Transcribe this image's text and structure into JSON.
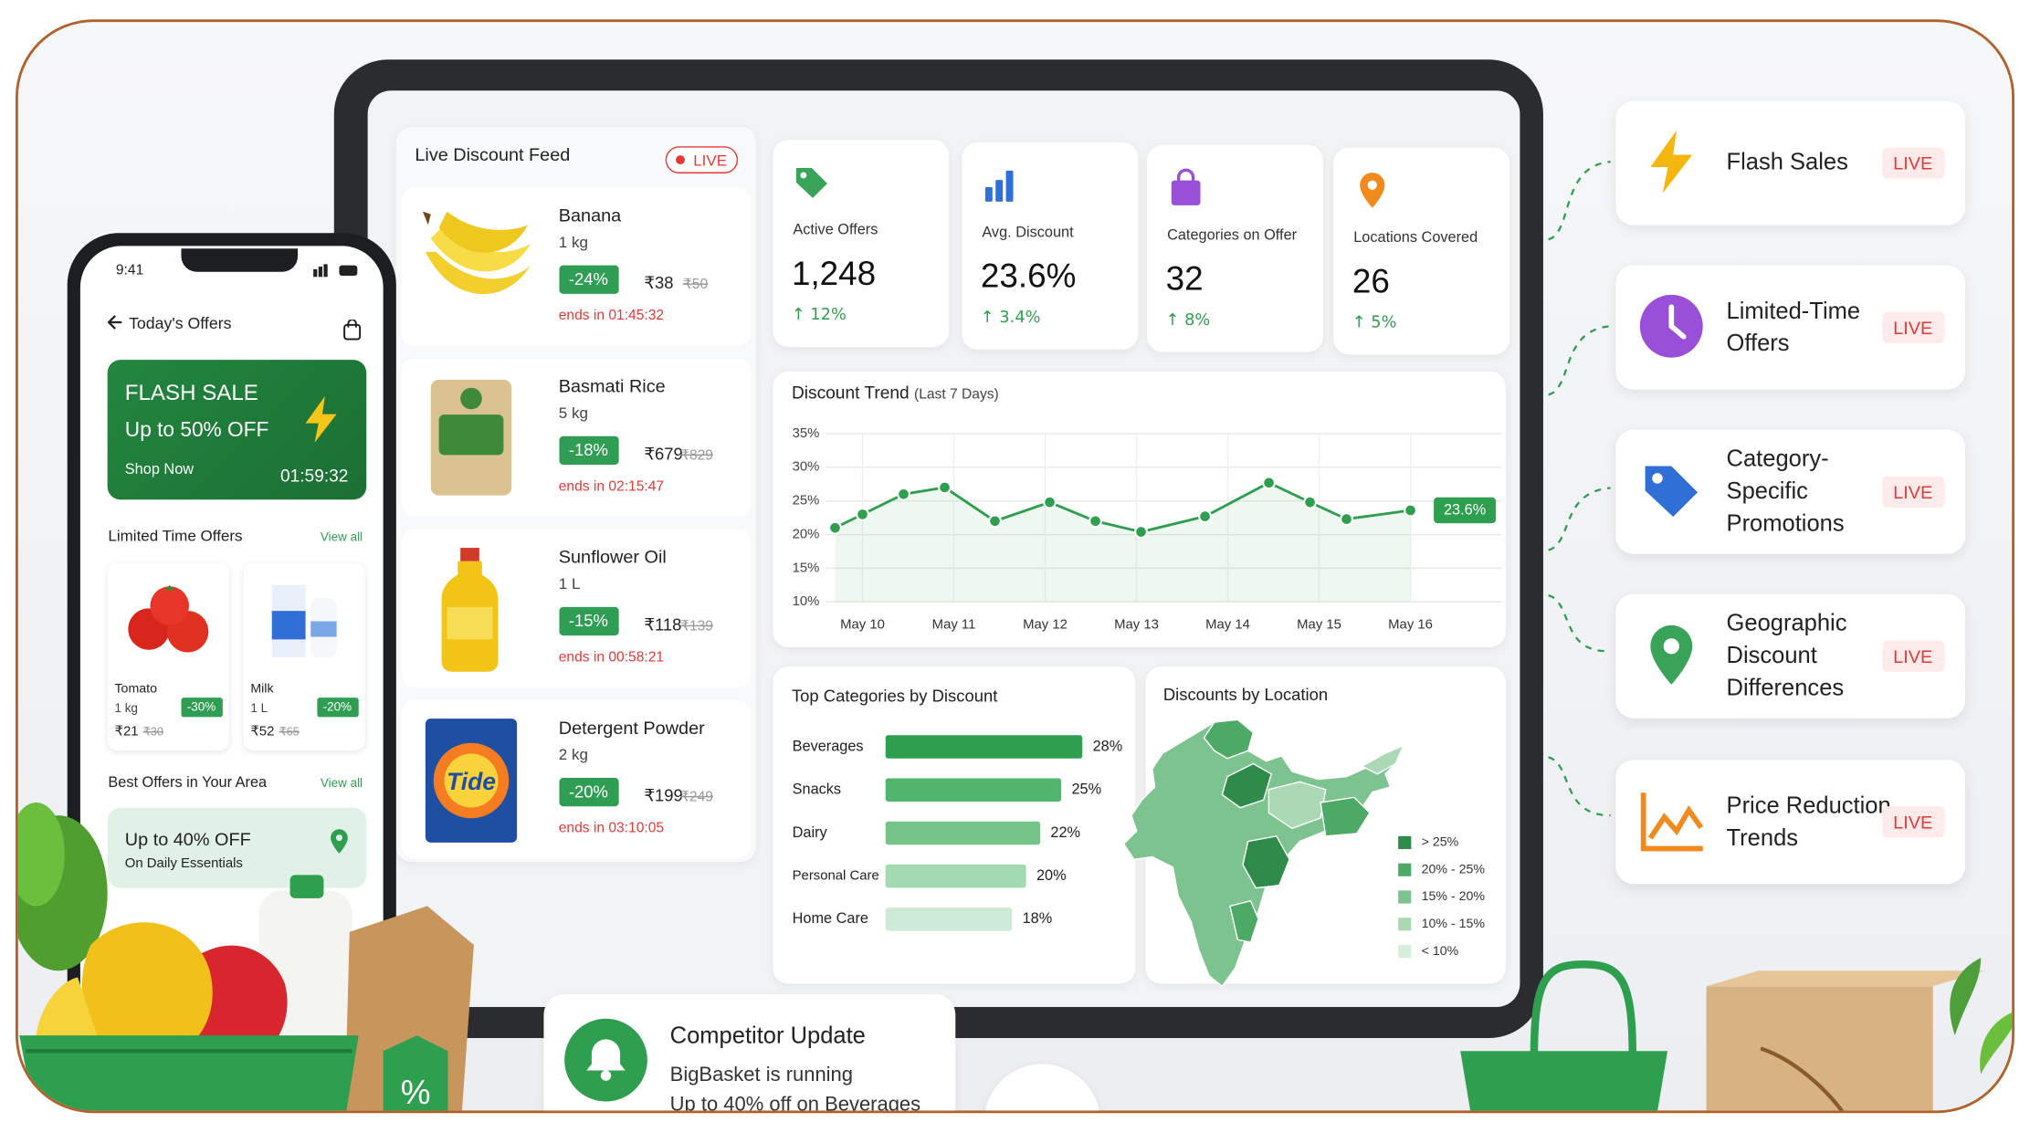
{
  "phone": {
    "time": "9:41",
    "title": "Today's Offers",
    "flash": {
      "title": "FLASH SALE",
      "subtitle": "Up to 50% OFF",
      "cta": "Shop Now",
      "timer": "01:59:32"
    },
    "limited": {
      "title": "Limited Time Offers",
      "link": "View all",
      "items": [
        {
          "name": "Tomato",
          "qty": "1 kg",
          "price": "₹21",
          "old": "₹30",
          "badge": "-30%"
        },
        {
          "name": "Milk",
          "qty": "1 L",
          "price": "₹52",
          "old": "₹65",
          "badge": "-20%"
        }
      ]
    },
    "area": {
      "title": "Best Offers in Your Area",
      "link": "View all",
      "offer": "Up to 40% OFF",
      "sub": "On Daily Essentials"
    }
  },
  "feed": {
    "title": "Live Discount Feed",
    "live": "LIVE",
    "items": [
      {
        "name": "Banana",
        "qty": "1 kg",
        "badge": "-24%",
        "price": "₹38",
        "old": "₹50",
        "ends": "ends in 01:45:32"
      },
      {
        "name": "Basmati Rice",
        "qty": "5 kg",
        "badge": "-18%",
        "price": "₹679",
        "old": "₹829",
        "ends": "ends in 02:15:47"
      },
      {
        "name": "Sunflower Oil",
        "qty": "1 L",
        "badge": "-15%",
        "price": "₹118",
        "old": "₹139",
        "ends": "ends in 00:58:21"
      },
      {
        "name": "Detergent Powder",
        "qty": "2 kg",
        "badge": "-20%",
        "price": "₹199",
        "old": "₹249",
        "ends": "ends in 03:10:05",
        "brand": "Tide"
      }
    ]
  },
  "kpis": [
    {
      "label": "Active Offers",
      "value": "1,248",
      "change": "↑ 12%"
    },
    {
      "label": "Avg. Discount",
      "value": "23.6%",
      "change": "↑ 3.4%"
    },
    {
      "label": "Categories on Offer",
      "value": "32",
      "change": "↑ 8%"
    },
    {
      "label": "Locations Covered",
      "value": "26",
      "change": "↑ 5%"
    }
  ],
  "chart_data": [
    {
      "type": "line",
      "title": "Discount Trend",
      "subtitle": "(Last 7 Days)",
      "x": [
        9.7,
        10,
        10.45,
        10.9,
        11.45,
        12.05,
        12.55,
        13.05,
        13.75,
        14.45,
        14.9,
        15.3,
        16
      ],
      "values": [
        21,
        23,
        26,
        27,
        22,
        24.8,
        22,
        20.4,
        22.7,
        27.7,
        24.8,
        22.3,
        23.6
      ],
      "value_labels": [
        null,
        null,
        null,
        null,
        null,
        null,
        null,
        null,
        null,
        null,
        null,
        null,
        "23.6%"
      ],
      "color": "#2e9e4f",
      "xlim": [
        9.6,
        17
      ],
      "xticks": [
        {
          "value": 10,
          "label": "May 10"
        },
        {
          "value": 11,
          "label": "May 11"
        },
        {
          "value": 12,
          "label": "May 12"
        },
        {
          "value": 13,
          "label": "May 13"
        },
        {
          "value": 14,
          "label": "May 14"
        },
        {
          "value": 15,
          "label": "May 15"
        },
        {
          "value": 16,
          "label": "May 16"
        }
      ],
      "ylim": [
        10,
        35
      ],
      "yticks": [
        {
          "value": 10,
          "label": "10%"
        },
        {
          "value": 15,
          "label": "15%"
        },
        {
          "value": 20,
          "label": "20%"
        },
        {
          "value": 25,
          "label": "25%"
        },
        {
          "value": 30,
          "label": "30%"
        },
        {
          "value": 35,
          "label": "35%"
        }
      ],
      "grid": true
    },
    {
      "type": "bar",
      "orientation": "horizontal",
      "title": "Top Categories by Discount",
      "categories": [
        "Beverages",
        "Snacks",
        "Dairy",
        "Personal Care",
        "Home Care"
      ],
      "values": [
        28,
        25,
        22,
        20,
        18
      ],
      "value_labels": [
        "28%",
        "25%",
        "22%",
        "20%",
        "18%"
      ],
      "colors": [
        "#2e9e4f",
        "#52b56d",
        "#74c489",
        "#a3dab2",
        "#cdebd6"
      ],
      "xlim": [
        0,
        28
      ]
    }
  ],
  "location_map": {
    "title": "Discounts by Location",
    "legend": [
      {
        "label": "> 25%",
        "color": "#2e8b4a"
      },
      {
        "label": "20% - 25%",
        "color": "#4daa66"
      },
      {
        "label": "15% - 20%",
        "color": "#7cc38f"
      },
      {
        "label": "10% - 15%",
        "color": "#abd9b6"
      },
      {
        "label": "< 10%",
        "color": "#d6eedc"
      }
    ]
  },
  "features": [
    {
      "title": "Flash Sales",
      "badge": "LIVE"
    },
    {
      "title": "Limited-Time Offers",
      "badge": "LIVE"
    },
    {
      "title": "Category-Specific Promotions",
      "badge": "LIVE"
    },
    {
      "title": "Geographic Discount Differences",
      "badge": "LIVE"
    },
    {
      "title": "Price Reduction Trends",
      "badge": "LIVE"
    }
  ],
  "competitor": {
    "title": "Competitor Update",
    "line1": "BigBasket is running",
    "line2": "Up to 40% off on Beverages"
  },
  "decor": {
    "tag": "%"
  }
}
